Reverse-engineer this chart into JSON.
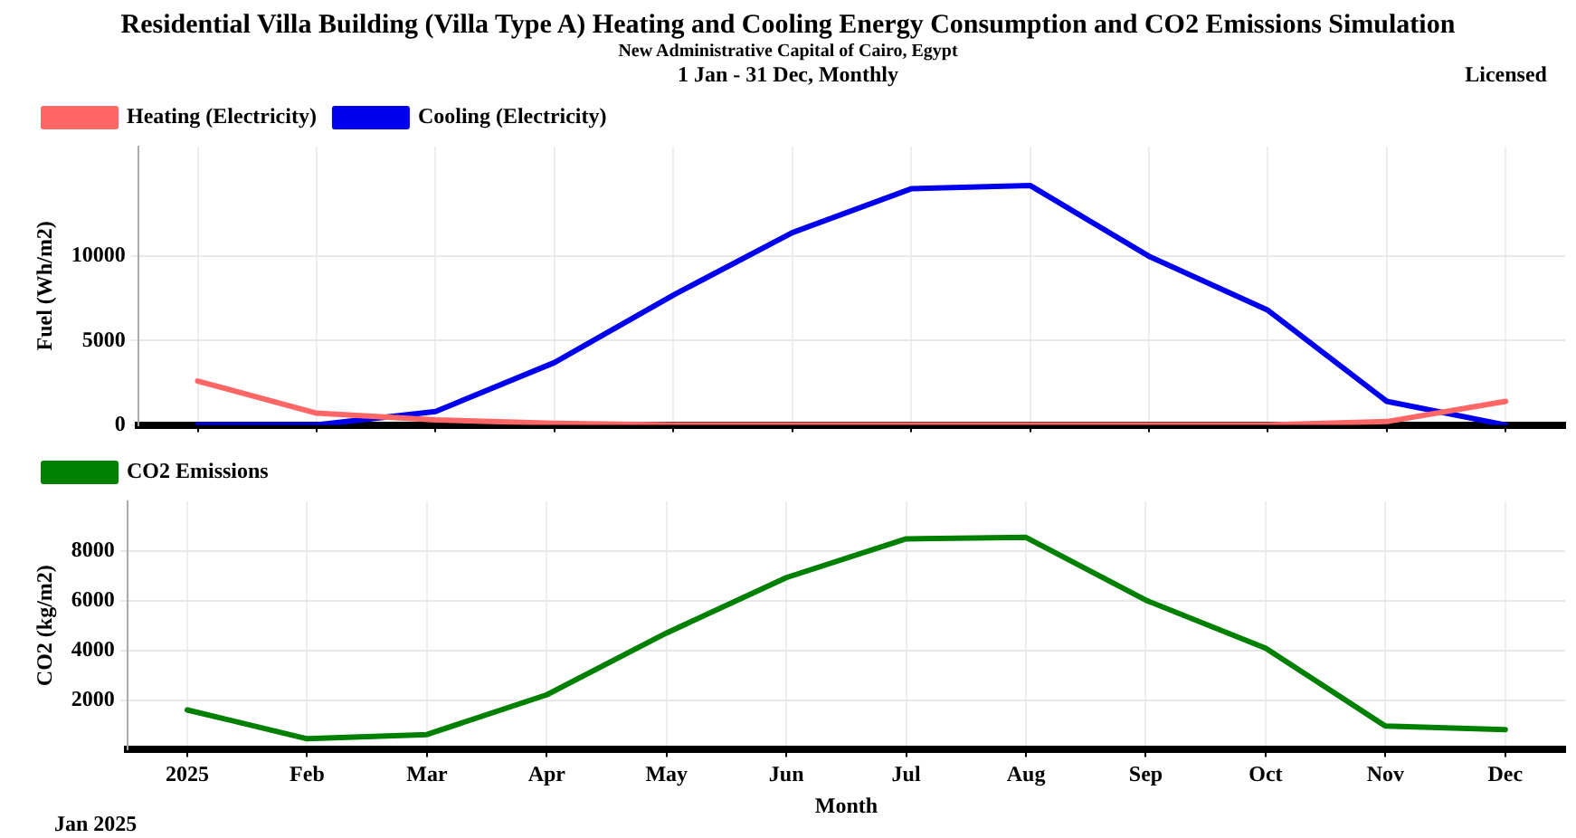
{
  "chart_data": [
    {
      "type": "line",
      "title": "Residential Villa Building (Villa Type A) Heating and Cooling Energy Consumption and CO2 Emissions Simulation",
      "subtitle": "New Administrative Capital of Cairo, Egypt",
      "annotations": [
        "1 Jan - 31 Dec, Monthly",
        "Licensed"
      ],
      "ylabel": "Fuel (Wh/m2)",
      "categories": [
        null,
        null,
        null,
        null,
        null,
        null,
        null,
        null,
        null,
        null,
        null,
        null
      ],
      "ylim": [
        0,
        16500
      ],
      "yticks": [
        0,
        5000,
        10000
      ],
      "tick_labels": "y",
      "grid": true,
      "legend": "top left",
      "marker": "none",
      "line_style": "solid",
      "series": [
        {
          "name": "Heating (Electricity)",
          "color": "#ff6666",
          "values": [
            2600,
            700,
            300,
            100,
            0,
            0,
            0,
            0,
            0,
            0,
            200,
            1400
          ]
        },
        {
          "name": "Cooling (Electricity)",
          "color": "#0000ee",
          "values": [
            0,
            0,
            800,
            3700,
            7700,
            11400,
            14000,
            14200,
            10000,
            6800,
            1400,
            0
          ]
        }
      ]
    },
    {
      "type": "line",
      "ylabel": "CO2 (kg/m2)",
      "xlabel": "Month",
      "annotations": [
        "Jan  2025"
      ],
      "categories": [
        "2025",
        "Feb",
        "Mar",
        "Apr",
        "May",
        "Jun",
        "Jul",
        "Aug",
        "Sep",
        "Oct",
        "Nov",
        "Dec"
      ],
      "ylim": [
        0,
        10000
      ],
      "yticks": [
        2000,
        4000,
        6000,
        8000
      ],
      "grid": true,
      "legend": "top left",
      "marker": "none",
      "line_style": "solid",
      "series": [
        {
          "name": "CO2 Emissions",
          "color": "#008000",
          "values": [
            1600,
            440,
            610,
            2210,
            4700,
            6930,
            8490,
            8550,
            6020,
            4090,
            950,
            810
          ]
        }
      ]
    }
  ]
}
